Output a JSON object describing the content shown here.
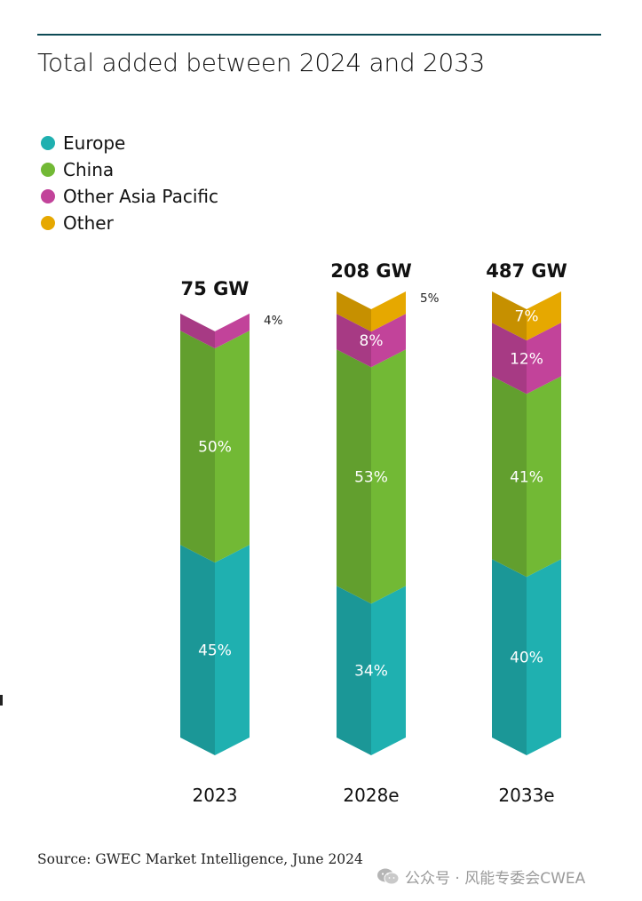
{
  "title": "Total added between 2024 and 2033",
  "legend": [
    {
      "label": "Europe",
      "color": "#1fb0b0"
    },
    {
      "label": "China",
      "color": "#72b935"
    },
    {
      "label": "Other Asia Pacific",
      "color": "#c2439a"
    },
    {
      "label": "Other",
      "color": "#e6a800"
    }
  ],
  "chart_data": {
    "type": "bar",
    "stacked": true,
    "categories": [
      "2023",
      "2028e",
      "2033e"
    ],
    "totals": [
      "75 GW",
      "208 GW",
      "487 GW"
    ],
    "series": [
      {
        "name": "Europe",
        "values": [
          45,
          34,
          40
        ],
        "labels": [
          "45%",
          "34%",
          "40%"
        ]
      },
      {
        "name": "China",
        "values": [
          50,
          53,
          41
        ],
        "labels": [
          "50%",
          "53%",
          "41%"
        ]
      },
      {
        "name": "Other Asia Pacific",
        "values": [
          4,
          8,
          12
        ],
        "labels": [
          "4%",
          "8%",
          "12%"
        ]
      },
      {
        "name": "Other",
        "values": [
          0,
          5,
          7
        ],
        "labels": [
          "",
          "5%",
          "7%"
        ]
      }
    ]
  },
  "source": "Source: GWEC Market Intelligence, June 2024",
  "watermark": "公众号 · 风能专委会CWEA"
}
